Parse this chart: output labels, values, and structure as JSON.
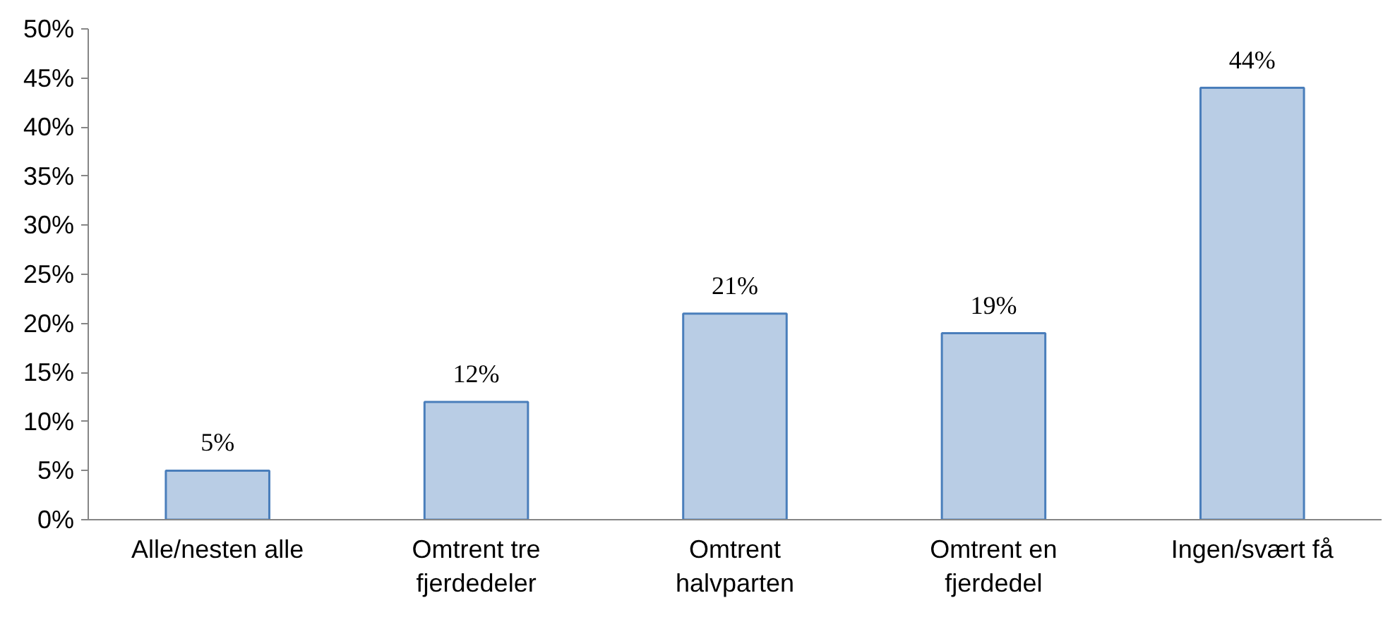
{
  "chart_data": {
    "type": "bar",
    "categories": [
      "Alle/nesten alle",
      "Omtrent tre\nfjerdedeler",
      "Omtrent\nhalvparten",
      "Omtrent en\nfjerdedel",
      "Ingen/svært få"
    ],
    "values": [
      5,
      12,
      21,
      19,
      44
    ],
    "color": "#b9cde5",
    "ylim": [
      0,
      50
    ],
    "yticks": [
      {
        "value": 0,
        "label": "0%"
      },
      {
        "value": 5,
        "label": "5%"
      },
      {
        "value": 10,
        "label": "10%"
      },
      {
        "value": 15,
        "label": "15%"
      },
      {
        "value": 20,
        "label": "20%"
      },
      {
        "value": 25,
        "label": "25%"
      },
      {
        "value": 30,
        "label": "30%"
      },
      {
        "value": 35,
        "label": "35%"
      },
      {
        "value": 40,
        "label": "40%"
      },
      {
        "value": 45,
        "label": "45%"
      },
      {
        "value": 50,
        "label": "50%"
      }
    ],
    "value_labels": [
      "5%",
      "12%",
      "21%",
      "19%",
      "44%"
    ],
    "grid": false
  }
}
